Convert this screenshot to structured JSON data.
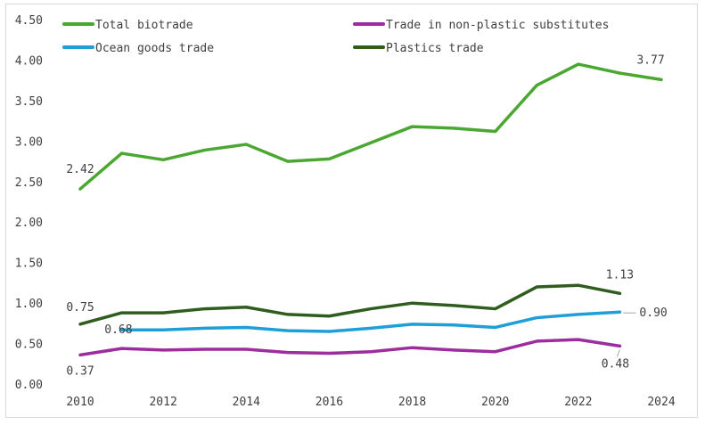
{
  "chart_data": {
    "type": "line",
    "title": "",
    "xlabel": "",
    "ylabel": "",
    "ylim": [
      0,
      4.5
    ],
    "yticks": [
      "0.00",
      "0.50",
      "1.00",
      "1.50",
      "2.00",
      "2.50",
      "3.00",
      "3.50",
      "4.00",
      "4.50"
    ],
    "xlim": [
      2010,
      2024
    ],
    "xticks": [
      "2010",
      "2012",
      "2014",
      "2016",
      "2018",
      "2020",
      "2022",
      "2024"
    ],
    "grid": false,
    "legend": "top",
    "x": [
      2010,
      2011,
      2012,
      2013,
      2014,
      2015,
      2016,
      2017,
      2018,
      2019,
      2020,
      2021,
      2022,
      2023,
      2024
    ],
    "series": [
      {
        "name": "Total biotrade",
        "color": "#4aa832",
        "values": [
          2.42,
          2.86,
          2.78,
          2.9,
          2.97,
          2.76,
          2.79,
          2.99,
          3.19,
          3.17,
          3.13,
          3.7,
          3.96,
          3.85,
          3.77
        ],
        "labels": [
          {
            "year": 2010,
            "text": "2.42"
          },
          {
            "year": 2024,
            "text": "3.77"
          }
        ]
      },
      {
        "name": "Trade in non-plastic substitutes",
        "color": "#9b2d9e",
        "values": [
          0.37,
          0.45,
          0.43,
          0.44,
          0.44,
          0.4,
          0.39,
          0.41,
          0.46,
          0.43,
          0.41,
          0.54,
          0.56,
          0.48,
          null
        ],
        "labels": [
          {
            "year": 2010,
            "text": "0.37"
          },
          {
            "year": 2023,
            "text": "0.48"
          }
        ]
      },
      {
        "name": "Ocean goods trade",
        "color": "#1f9fd7",
        "values": [
          null,
          0.68,
          0.68,
          0.7,
          0.71,
          0.67,
          0.66,
          0.7,
          0.75,
          0.74,
          0.71,
          0.83,
          0.87,
          0.9,
          null
        ],
        "labels": [
          {
            "year": 2011,
            "text": "0.68"
          },
          {
            "year": 2023,
            "text": "0.90"
          }
        ]
      },
      {
        "name": "Plastics trade",
        "color": "#2e5d1e",
        "values": [
          0.75,
          0.89,
          0.89,
          0.94,
          0.96,
          0.87,
          0.85,
          0.94,
          1.01,
          0.98,
          0.94,
          1.21,
          1.23,
          1.13,
          null
        ],
        "labels": [
          {
            "year": 2010,
            "text": "0.75"
          },
          {
            "year": 2023,
            "text": "1.13"
          }
        ]
      }
    ]
  }
}
